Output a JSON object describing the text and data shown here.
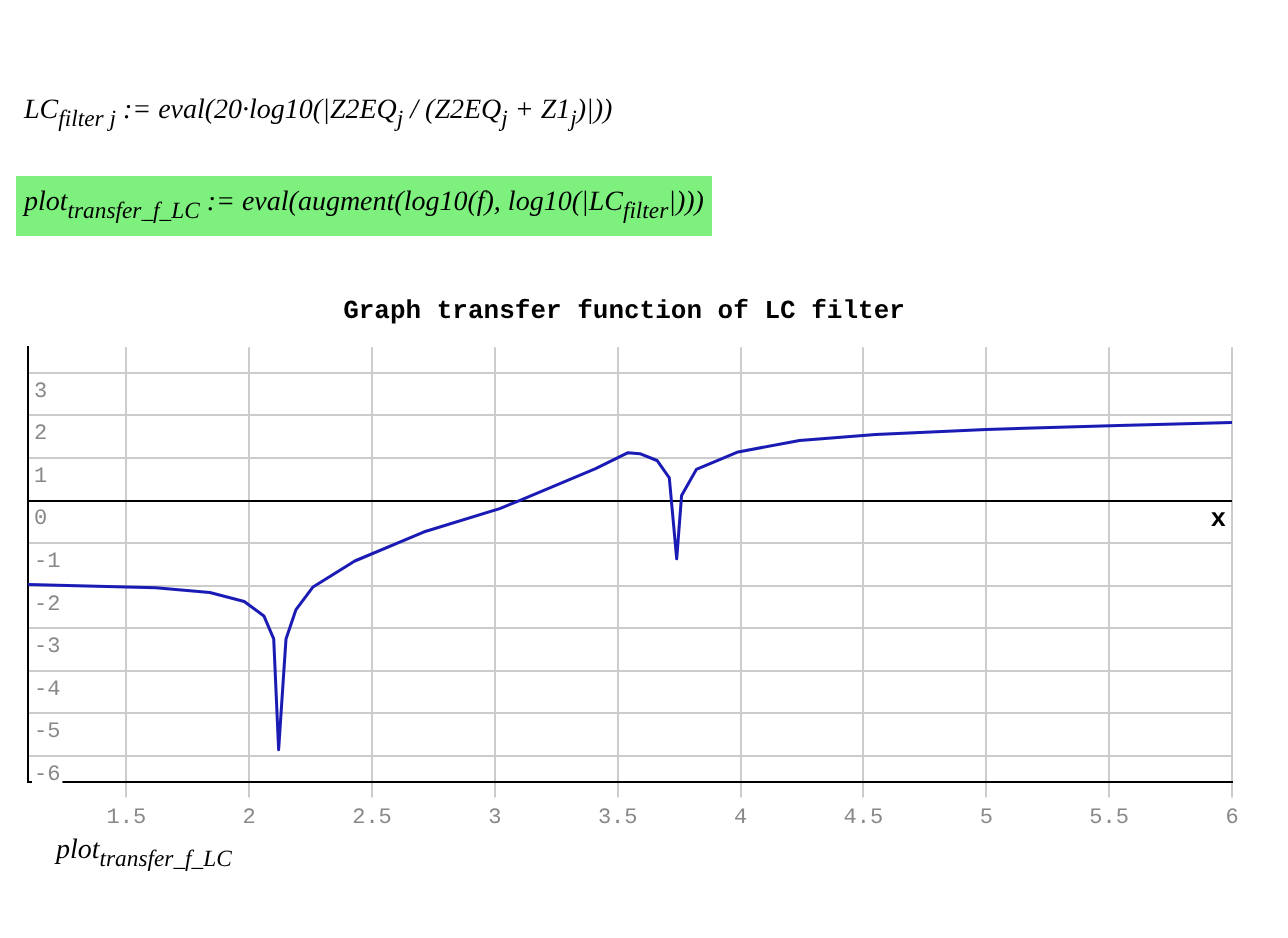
{
  "chart_data": {
    "type": "line",
    "title": "Graph transfer function of LC filter",
    "xlabel": "x",
    "annotations": [
      "LC$_{filter j}$ := eval(20·log10(|Z2EQ$_{j}$ / (Z2EQ$_{j}$ + Z1$_{j}$)|))",
      "plot$_{transfer_f_LC}$ := eval(augment(log10(f), log10(|LC$_{filter}$|)))",
      "plot$_{transfer_f_LC}$"
    ],
    "x": [
      1.1,
      1.62,
      1.84,
      1.98,
      2.06,
      2.1,
      2.12,
      2.15,
      2.19,
      2.26,
      2.43,
      2.71,
      3.02,
      3.1,
      3.41,
      3.54,
      3.59,
      3.66,
      3.71,
      3.74,
      3.76,
      3.82,
      3.99,
      4.24,
      4.55,
      5.0,
      5.54,
      6.0
    ],
    "series": [
      {
        "color": "#1a1ab4",
        "values": [
          -1.97,
          -2.05,
          -2.16,
          -2.37,
          -2.71,
          -3.25,
          -5.85,
          -3.25,
          -2.57,
          -2.03,
          -1.42,
          -0.74,
          -0.19,
          0,
          0.75,
          1.12,
          1.1,
          0.94,
          0.53,
          -1.37,
          0.12,
          0.73,
          1.14,
          1.41,
          1.55,
          1.67,
          1.76,
          1.83
        ]
      }
    ],
    "xlim": [
      1.1,
      6
    ],
    "ylim": [
      -6.6,
      3.6
    ],
    "xticks": [
      1.5,
      2,
      2.5,
      3,
      3.5,
      4,
      4.5,
      5,
      5.5,
      6
    ],
    "yticks": [
      -6,
      -5,
      -4,
      -3,
      -2,
      -1,
      0,
      1,
      2,
      3
    ],
    "grid": true,
    "marker": "none",
    "line_style": "solid"
  }
}
